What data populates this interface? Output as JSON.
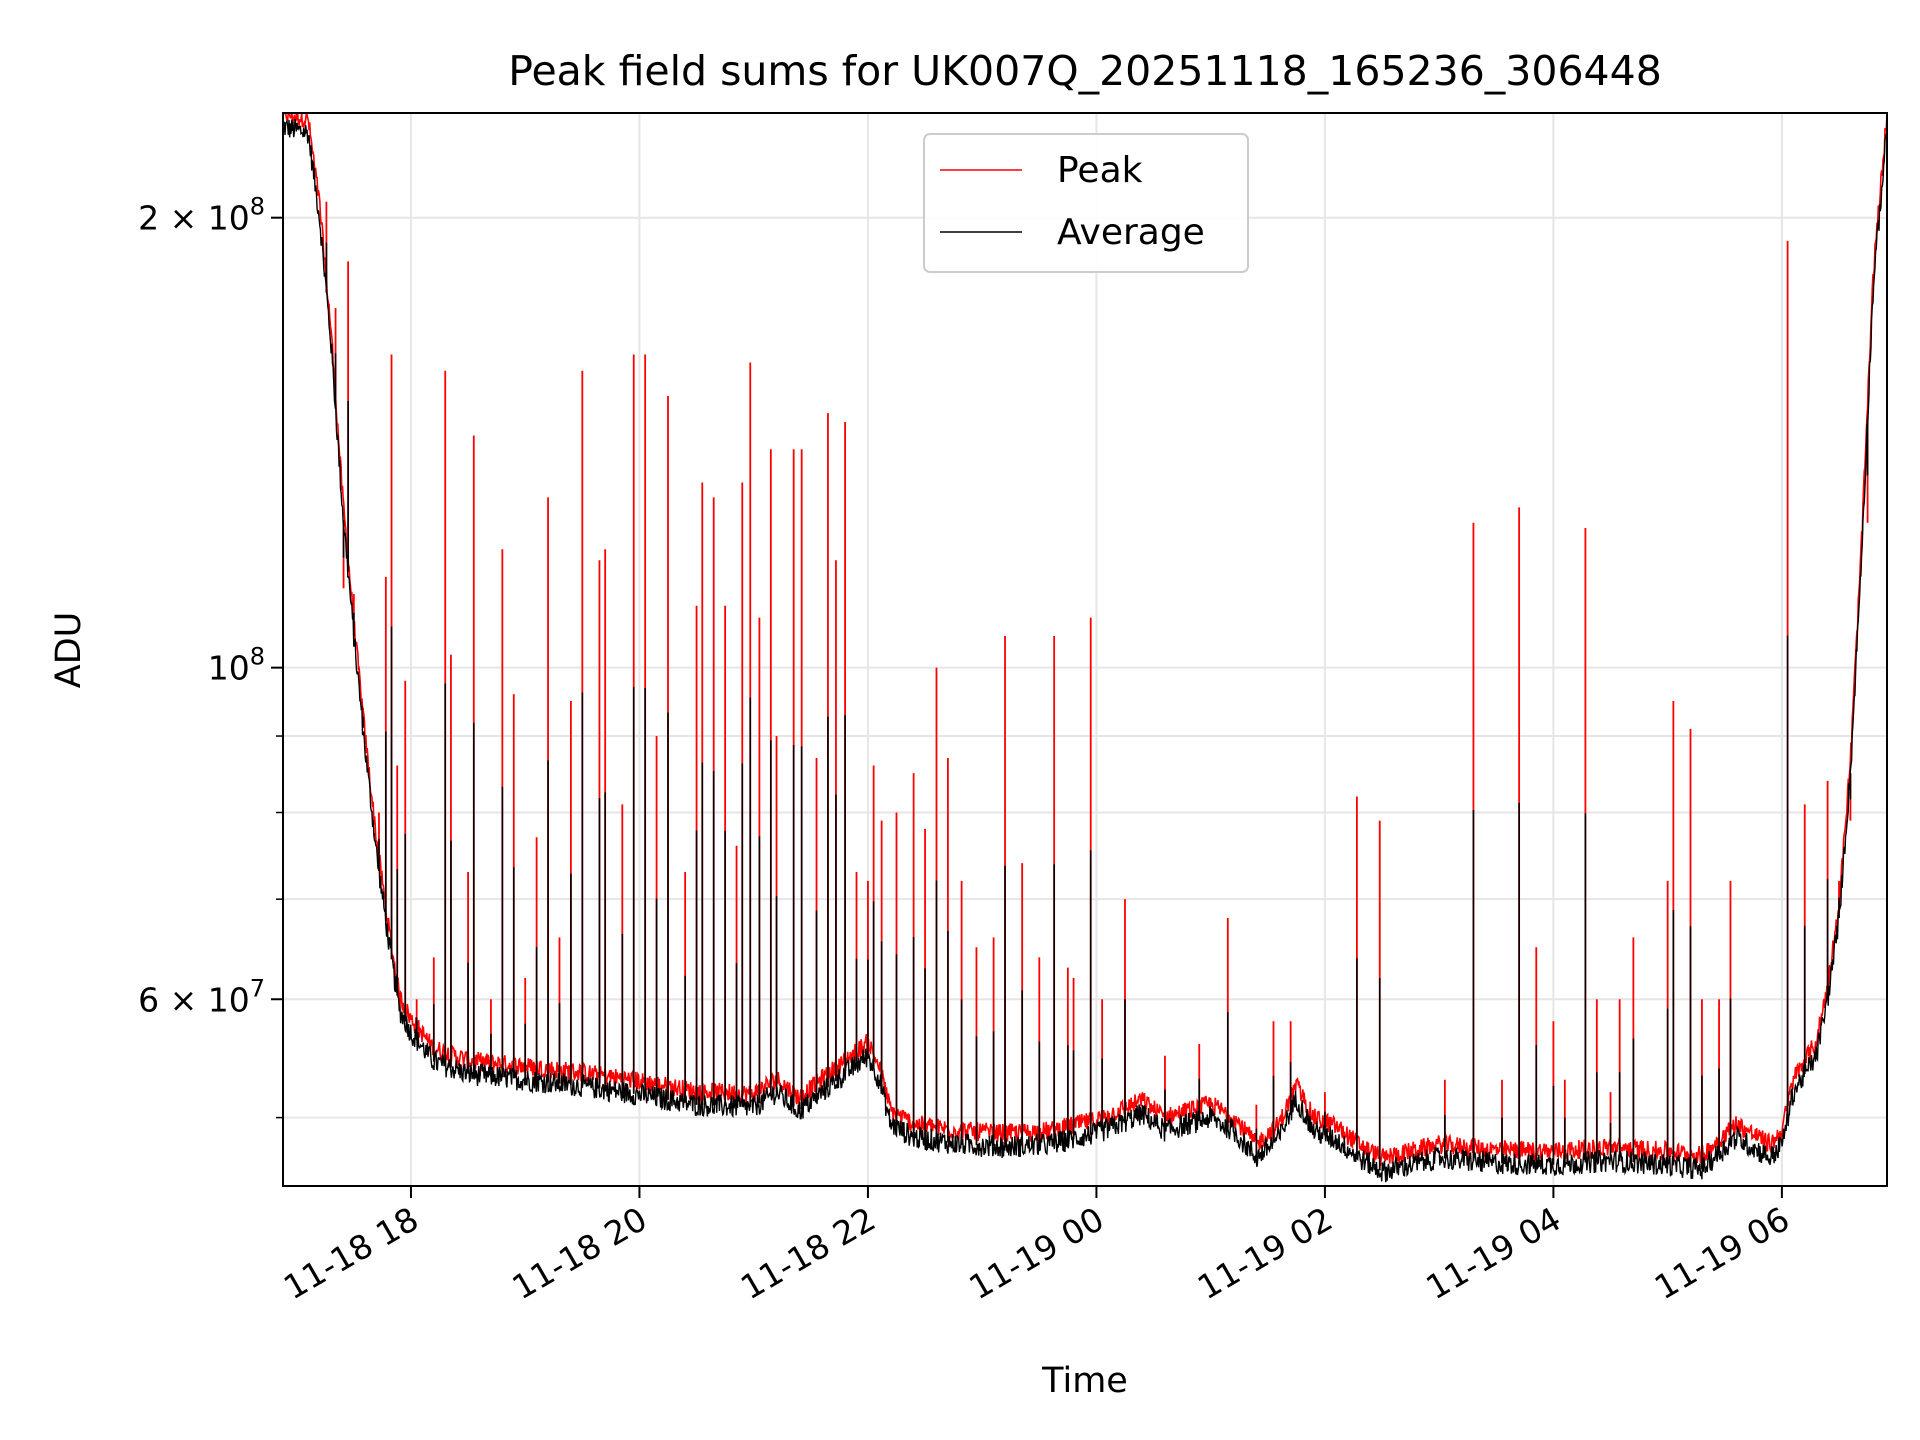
{
  "chart_data": {
    "type": "line",
    "title": "Peak field sums for UK007Q_20251118_165236_306448",
    "xlabel": "Time",
    "ylabel": "ADU",
    "yscale": "log",
    "grid": true,
    "legend_position": "top-center",
    "xlim_hours": [
      -1.12,
      12.92
    ],
    "ylim": [
      45000000,
      235000000
    ],
    "x_ticks": [
      {
        "hour": 0,
        "label": "11-18 18"
      },
      {
        "hour": 2,
        "label": "11-18 20"
      },
      {
        "hour": 4,
        "label": "11-18 22"
      },
      {
        "hour": 6,
        "label": "11-19 00"
      },
      {
        "hour": 8,
        "label": "11-19 02"
      },
      {
        "hour": 10,
        "label": "11-19 04"
      },
      {
        "hour": 12,
        "label": "11-19 06"
      }
    ],
    "y_ticks": [
      {
        "value": 200000000,
        "base": "2 × 10",
        "exp": "8"
      },
      {
        "value": 100000000,
        "base": "10",
        "exp": "8"
      },
      {
        "value": 60000000,
        "base": "6 × 10",
        "exp": "7"
      }
    ],
    "y_minor_ticks": [
      50000000,
      70000000,
      80000000,
      90000000
    ],
    "series": [
      {
        "name": "Peak",
        "color": "#ff0000"
      },
      {
        "name": "Average",
        "color": "#000000"
      }
    ],
    "baseline_average": [
      [
        -1.12,
        230000000
      ],
      [
        -0.9,
        228000000
      ],
      [
        -0.8,
        200000000
      ],
      [
        -0.7,
        165000000
      ],
      [
        -0.6,
        128000000
      ],
      [
        -0.5,
        105000000
      ],
      [
        -0.4,
        88000000
      ],
      [
        -0.3,
        75000000
      ],
      [
        -0.2,
        66000000
      ],
      [
        -0.1,
        59000000
      ],
      [
        0.0,
        57000000
      ],
      [
        0.2,
        54500000
      ],
      [
        0.5,
        53500000
      ],
      [
        1.0,
        53000000
      ],
      [
        1.5,
        52500000
      ],
      [
        2.0,
        51800000
      ],
      [
        2.5,
        51000000
      ],
      [
        3.0,
        50800000
      ],
      [
        3.2,
        52000000
      ],
      [
        3.4,
        50500000
      ],
      [
        3.6,
        52000000
      ],
      [
        3.8,
        53500000
      ],
      [
        4.0,
        55000000
      ],
      [
        4.1,
        53000000
      ],
      [
        4.2,
        49500000
      ],
      [
        4.4,
        48500000
      ],
      [
        4.8,
        48000000
      ],
      [
        5.2,
        47800000
      ],
      [
        5.6,
        48000000
      ],
      [
        6.0,
        48800000
      ],
      [
        6.2,
        49500000
      ],
      [
        6.4,
        50300000
      ],
      [
        6.6,
        49000000
      ],
      [
        6.8,
        49500000
      ],
      [
        7.0,
        50000000
      ],
      [
        7.2,
        49000000
      ],
      [
        7.4,
        47000000
      ],
      [
        7.6,
        48500000
      ],
      [
        7.75,
        51500000
      ],
      [
        7.9,
        49000000
      ],
      [
        8.1,
        48300000
      ],
      [
        8.3,
        47000000
      ],
      [
        8.5,
        46000000
      ],
      [
        9.0,
        47000000
      ],
      [
        9.5,
        46600000
      ],
      [
        10.0,
        46500000
      ],
      [
        10.5,
        46800000
      ],
      [
        11.0,
        46500000
      ],
      [
        11.3,
        46200000
      ],
      [
        11.6,
        48500000
      ],
      [
        11.9,
        47000000
      ],
      [
        12.0,
        48000000
      ],
      [
        12.1,
        52000000
      ],
      [
        12.3,
        55000000
      ],
      [
        12.4,
        60000000
      ],
      [
        12.5,
        68000000
      ],
      [
        12.6,
        85000000
      ],
      [
        12.7,
        120000000
      ],
      [
        12.8,
        180000000
      ],
      [
        12.92,
        230000000
      ]
    ],
    "spikes": [
      [
        -0.74,
        205000000
      ],
      [
        -0.66,
        174000000
      ],
      [
        -0.59,
        113000000
      ],
      [
        -0.55,
        187000000
      ],
      [
        -0.5,
        112000000
      ],
      [
        -0.42,
        94000000
      ],
      [
        -0.32,
        77000000
      ],
      [
        -0.28,
        80000000
      ],
      [
        -0.22,
        115000000
      ],
      [
        -0.17,
        162000000
      ],
      [
        -0.12,
        86000000
      ],
      [
        -0.05,
        98000000
      ],
      [
        0.05,
        60000000
      ],
      [
        0.2,
        64000000
      ],
      [
        0.3,
        158000000
      ],
      [
        0.35,
        102000000
      ],
      [
        0.5,
        73000000
      ],
      [
        0.55,
        143000000
      ],
      [
        0.7,
        60000000
      ],
      [
        0.8,
        120000000
      ],
      [
        0.9,
        96000000
      ],
      [
        1.0,
        62000000
      ],
      [
        1.1,
        77000000
      ],
      [
        1.2,
        130000000
      ],
      [
        1.3,
        66000000
      ],
      [
        1.4,
        95000000
      ],
      [
        1.5,
        158000000
      ],
      [
        1.65,
        118000000
      ],
      [
        1.7,
        120000000
      ],
      [
        1.85,
        81000000
      ],
      [
        1.95,
        162000000
      ],
      [
        2.05,
        162000000
      ],
      [
        2.15,
        90000000
      ],
      [
        2.25,
        152000000
      ],
      [
        2.4,
        73000000
      ],
      [
        2.5,
        110000000
      ],
      [
        2.55,
        133000000
      ],
      [
        2.65,
        130000000
      ],
      [
        2.75,
        110000000
      ],
      [
        2.85,
        76000000
      ],
      [
        2.9,
        133000000
      ],
      [
        2.97,
        160000000
      ],
      [
        3.05,
        108000000
      ],
      [
        3.15,
        140000000
      ],
      [
        3.2,
        90000000
      ],
      [
        3.35,
        140000000
      ],
      [
        3.42,
        140000000
      ],
      [
        3.55,
        87000000
      ],
      [
        3.65,
        148000000
      ],
      [
        3.72,
        118000000
      ],
      [
        3.8,
        146000000
      ],
      [
        3.9,
        73000000
      ],
      [
        4.0,
        72000000
      ],
      [
        4.05,
        86000000
      ],
      [
        4.12,
        79000000
      ],
      [
        4.25,
        80000000
      ],
      [
        4.4,
        85000000
      ],
      [
        4.5,
        78000000
      ],
      [
        4.6,
        100000000
      ],
      [
        4.7,
        87000000
      ],
      [
        4.82,
        72000000
      ],
      [
        4.95,
        65000000
      ],
      [
        5.1,
        66000000
      ],
      [
        5.2,
        105000000
      ],
      [
        5.35,
        74000000
      ],
      [
        5.5,
        64000000
      ],
      [
        5.63,
        105000000
      ],
      [
        5.75,
        63000000
      ],
      [
        5.8,
        62000000
      ],
      [
        5.95,
        108000000
      ],
      [
        6.05,
        60000000
      ],
      [
        6.25,
        70000000
      ],
      [
        6.6,
        55000000
      ],
      [
        6.9,
        56000000
      ],
      [
        7.15,
        68000000
      ],
      [
        7.4,
        51000000
      ],
      [
        7.55,
        58000000
      ],
      [
        7.7,
        58000000
      ],
      [
        8.0,
        52000000
      ],
      [
        8.28,
        82000000
      ],
      [
        8.48,
        79000000
      ],
      [
        9.05,
        53000000
      ],
      [
        9.3,
        125000000
      ],
      [
        9.55,
        53000000
      ],
      [
        9.7,
        128000000
      ],
      [
        9.85,
        65000000
      ],
      [
        10.0,
        58000000
      ],
      [
        10.1,
        53000000
      ],
      [
        10.28,
        124000000
      ],
      [
        10.38,
        60000000
      ],
      [
        10.5,
        52000000
      ],
      [
        10.58,
        60000000
      ],
      [
        10.7,
        66000000
      ],
      [
        11.0,
        72000000
      ],
      [
        11.05,
        95000000
      ],
      [
        11.2,
        91000000
      ],
      [
        11.3,
        60000000
      ],
      [
        11.45,
        60000000
      ],
      [
        11.55,
        72000000
      ],
      [
        12.05,
        193000000
      ],
      [
        12.2,
        81000000
      ],
      [
        12.4,
        84000000
      ],
      [
        12.5,
        72000000
      ],
      [
        12.6,
        79000000
      ],
      [
        12.75,
        125000000
      ]
    ]
  }
}
